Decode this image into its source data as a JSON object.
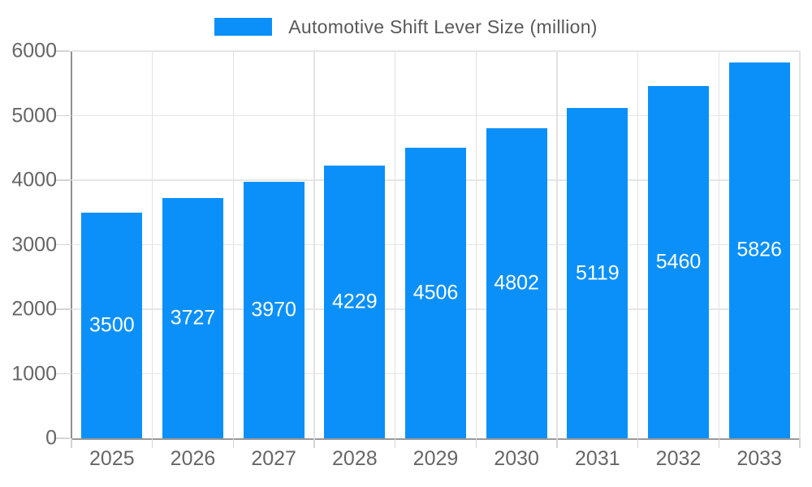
{
  "chart_data": {
    "type": "bar",
    "title": "Automotive Shift Lever Size (million)",
    "categories": [
      "2025",
      "2026",
      "2027",
      "2028",
      "2029",
      "2030",
      "2031",
      "2032",
      "2033"
    ],
    "values": [
      3500,
      3727,
      3970,
      4229,
      4506,
      4802,
      5119,
      5460,
      5826
    ],
    "xlabel": "",
    "ylabel": "",
    "ylim": [
      0,
      6000
    ],
    "yticks": [
      0,
      1000,
      2000,
      3000,
      4000,
      5000,
      6000
    ],
    "grid": true,
    "legend_position": "top",
    "value_label_position": "inside-center",
    "colors": {
      "bar": "#0b90f9",
      "grid_line": "#e5e5e5",
      "axis_line": "#999999",
      "tick_line": "#d4d4d4",
      "axis_text": "#666666",
      "legend_text": "#595959",
      "value_text": "#ffffff",
      "background": "#ffffff"
    }
  }
}
